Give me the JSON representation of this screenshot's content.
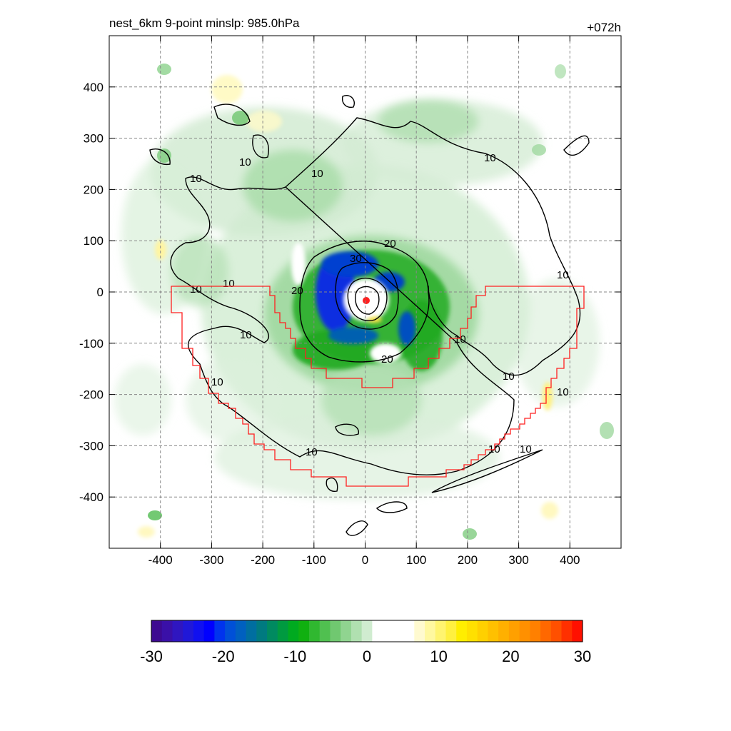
{
  "chart_data": {
    "type": "heatmap",
    "title_left": "nest_6km  9-point minslp: 985.0hPa",
    "title_right": "+072h",
    "xlim": [
      -500,
      500
    ],
    "ylim": [
      -500,
      500
    ],
    "x_ticks": [
      -400,
      -300,
      -200,
      -100,
      0,
      100,
      200,
      300,
      400
    ],
    "y_ticks": [
      -400,
      -300,
      -200,
      -100,
      0,
      100,
      200,
      300,
      400
    ],
    "grid": true,
    "colorbar": {
      "range": [
        -30,
        30
      ],
      "ticks": [
        -30,
        -20,
        -10,
        0,
        10,
        20,
        30
      ],
      "colors": [
        "#3d0a91",
        "#3a10a8",
        "#2f16c0",
        "#2018d8",
        "#1010f0",
        "#0000ff",
        "#0033ee",
        "#0050d8",
        "#0060c0",
        "#006ea0",
        "#007a80",
        "#008a60",
        "#009a40",
        "#00aa20",
        "#10b010",
        "#30b830",
        "#50c050",
        "#70c870",
        "#90d490",
        "#b0e0b0",
        "#d0ecd0",
        "#ffffff",
        "#ffffff",
        "#ffffff",
        "#ffffff",
        "#fffad0",
        "#fff8a0",
        "#fff470",
        "#fff040",
        "#ffee00",
        "#ffe000",
        "#ffd000",
        "#ffc000",
        "#ffb000",
        "#ffa000",
        "#ff9000",
        "#ff8000",
        "#ff6800",
        "#ff5000",
        "#ff3000",
        "#ff1000"
      ]
    },
    "contour_labels": [
      "10",
      "20",
      "30"
    ],
    "contour_levels": [
      10,
      20,
      30
    ],
    "center": {
      "x": 5,
      "y": -15
    }
  }
}
